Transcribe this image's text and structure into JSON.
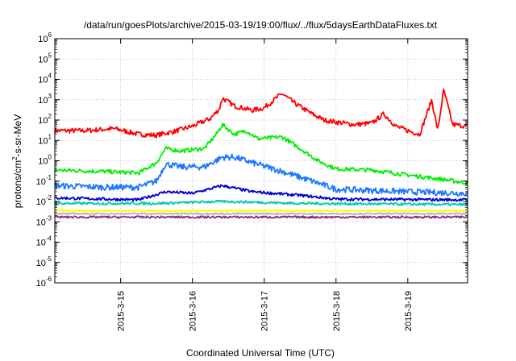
{
  "chart_data": {
    "type": "line",
    "title": "/data/run/goesPlots/archive/2015-03-19/19:00/flux/../flux/5daysEarthDataFluxes.txt",
    "xlabel": "Coordinated Universal Time (UTC)",
    "ylabel": "protons/cm²-s-sr-MeV",
    "ylabel_parts": {
      "pre": "protons/cm",
      "sup": "2",
      "post": "-s-sr-MeV"
    },
    "y_scale": "log",
    "ylim": [
      1e-06,
      1000000.0
    ],
    "y_ticks": [
      {
        "value": 1e-06,
        "base": "10",
        "exp": "-6"
      },
      {
        "value": 1e-05,
        "base": "10",
        "exp": "-5"
      },
      {
        "value": 0.0001,
        "base": "10",
        "exp": "-4"
      },
      {
        "value": 0.001,
        "base": "10",
        "exp": "-3"
      },
      {
        "value": 0.01,
        "base": "10",
        "exp": "-2"
      },
      {
        "value": 0.1,
        "base": "10",
        "exp": "-1"
      },
      {
        "value": 1,
        "base": "10",
        "exp": "0"
      },
      {
        "value": 10,
        "base": "10",
        "exp": "1"
      },
      {
        "value": 100,
        "base": "10",
        "exp": "2"
      },
      {
        "value": 1000,
        "base": "10",
        "exp": "3"
      },
      {
        "value": 10000,
        "base": "10",
        "exp": "4"
      },
      {
        "value": 100000,
        "base": "10",
        "exp": "5"
      },
      {
        "value": 1000000,
        "base": "10",
        "exp": "6"
      }
    ],
    "xlim": [
      "2015-03-14 02:00",
      "2015-03-19 20:00"
    ],
    "x_ticks": [
      {
        "value": "2015-03-15 00:00",
        "label": "2015-3-15"
      },
      {
        "value": "2015-03-16 00:00",
        "label": "2015-3-16"
      },
      {
        "value": "2015-03-17 00:00",
        "label": "2015-3-17"
      },
      {
        "value": "2015-03-18 00:00",
        "label": "2015-3-18"
      },
      {
        "value": "2015-03-19 00:00",
        "label": "2015-3-19"
      }
    ],
    "grid": true,
    "legend": "none",
    "series": [
      {
        "color": "#ff0000",
        "noise": 0.12,
        "points": [
          [
            "2015-03-14 02:00",
            30
          ],
          [
            "2015-03-14 12:00",
            30
          ],
          [
            "2015-03-14 22:00",
            38
          ],
          [
            "2015-03-15 06:00",
            20
          ],
          [
            "2015-03-15 12:00",
            18
          ],
          [
            "2015-03-15 18:00",
            28
          ],
          [
            "2015-03-16 00:00",
            50
          ],
          [
            "2015-03-16 06:00",
            120
          ],
          [
            "2015-03-16 09:00",
            350
          ],
          [
            "2015-03-16 10:00",
            1200
          ],
          [
            "2015-03-16 14:00",
            500
          ],
          [
            "2015-03-16 20:00",
            300
          ],
          [
            "2015-03-17 00:00",
            400
          ],
          [
            "2015-03-17 04:00",
            1200
          ],
          [
            "2015-03-17 06:00",
            2000
          ],
          [
            "2015-03-17 10:00",
            700
          ],
          [
            "2015-03-17 16:00",
            200
          ],
          [
            "2015-03-17 20:00",
            100
          ],
          [
            "2015-03-18 00:00",
            80
          ],
          [
            "2015-03-18 06:00",
            60
          ],
          [
            "2015-03-18 12:00",
            70
          ],
          [
            "2015-03-18 16:00",
            200
          ],
          [
            "2015-03-18 20:00",
            50
          ],
          [
            "2015-03-19 00:00",
            30
          ],
          [
            "2015-03-19 04:00",
            20
          ],
          [
            "2015-03-19 08:00",
            1000
          ],
          [
            "2015-03-19 10:00",
            30
          ],
          [
            "2015-03-19 12:00",
            3000
          ],
          [
            "2015-03-19 15:00",
            60
          ],
          [
            "2015-03-19 20:00",
            50
          ]
        ]
      },
      {
        "color": "#00ee00",
        "noise": 0.1,
        "points": [
          [
            "2015-03-14 02:00",
            0.35
          ],
          [
            "2015-03-14 18:00",
            0.3
          ],
          [
            "2015-03-15 06:00",
            0.25
          ],
          [
            "2015-03-15 12:00",
            0.8
          ],
          [
            "2015-03-15 15:00",
            4
          ],
          [
            "2015-03-15 20:00",
            3
          ],
          [
            "2015-03-16 04:00",
            4
          ],
          [
            "2015-03-16 08:00",
            20
          ],
          [
            "2015-03-16 10:00",
            60
          ],
          [
            "2015-03-16 14:00",
            20
          ],
          [
            "2015-03-16 18:00",
            30
          ],
          [
            "2015-03-16 22:00",
            12
          ],
          [
            "2015-03-17 06:00",
            15
          ],
          [
            "2015-03-17 12:00",
            4
          ],
          [
            "2015-03-17 18:00",
            1
          ],
          [
            "2015-03-18 00:00",
            0.4
          ],
          [
            "2015-03-18 12:00",
            0.35
          ],
          [
            "2015-03-19 00:00",
            0.2
          ],
          [
            "2015-03-19 12:00",
            0.12
          ],
          [
            "2015-03-19 20:00",
            0.08
          ]
        ]
      },
      {
        "color": "#1e78ff",
        "noise": 0.15,
        "points": [
          [
            "2015-03-14 02:00",
            0.06
          ],
          [
            "2015-03-14 18:00",
            0.05
          ],
          [
            "2015-03-15 06:00",
            0.05
          ],
          [
            "2015-03-15 12:00",
            0.1
          ],
          [
            "2015-03-15 15:00",
            0.7
          ],
          [
            "2015-03-15 20:00",
            0.5
          ],
          [
            "2015-03-16 04:00",
            0.5
          ],
          [
            "2015-03-16 10:00",
            1.5
          ],
          [
            "2015-03-16 14:00",
            1.5
          ],
          [
            "2015-03-16 20:00",
            0.8
          ],
          [
            "2015-03-17 06:00",
            0.3
          ],
          [
            "2015-03-17 16:00",
            0.1
          ],
          [
            "2015-03-18 00:00",
            0.04
          ],
          [
            "2015-03-19 00:00",
            0.03
          ],
          [
            "2015-03-19 20:00",
            0.025
          ]
        ]
      },
      {
        "color": "#0000cc",
        "noise": 0.07,
        "points": [
          [
            "2015-03-14 02:00",
            0.015
          ],
          [
            "2015-03-15 06:00",
            0.012
          ],
          [
            "2015-03-15 15:00",
            0.03
          ],
          [
            "2015-03-16 00:00",
            0.025
          ],
          [
            "2015-03-16 10:00",
            0.06
          ],
          [
            "2015-03-16 20:00",
            0.03
          ],
          [
            "2015-03-17 12:00",
            0.02
          ],
          [
            "2015-03-18 00:00",
            0.013
          ],
          [
            "2015-03-19 20:00",
            0.012
          ]
        ]
      },
      {
        "color": "#00c8a8",
        "noise": 0.06,
        "points": [
          [
            "2015-03-14 02:00",
            0.008
          ],
          [
            "2015-03-15 12:00",
            0.008
          ],
          [
            "2015-03-16 10:00",
            0.01
          ],
          [
            "2015-03-17 12:00",
            0.008
          ],
          [
            "2015-03-19 20:00",
            0.007
          ]
        ]
      },
      {
        "color": "#ffff00",
        "noise": 0.04,
        "points": [
          [
            "2015-03-14 02:00",
            0.0035
          ],
          [
            "2015-03-19 20:00",
            0.0035
          ]
        ]
      },
      {
        "color": "#b0b0b0",
        "noise": 0.03,
        "points": [
          [
            "2015-03-14 02:00",
            0.0025
          ],
          [
            "2015-03-19 20:00",
            0.0025
          ]
        ]
      },
      {
        "color": "#8b2a7a",
        "noise": 0.05,
        "points": [
          [
            "2015-03-14 02:00",
            0.0017
          ],
          [
            "2015-03-19 20:00",
            0.0017
          ]
        ]
      }
    ]
  }
}
